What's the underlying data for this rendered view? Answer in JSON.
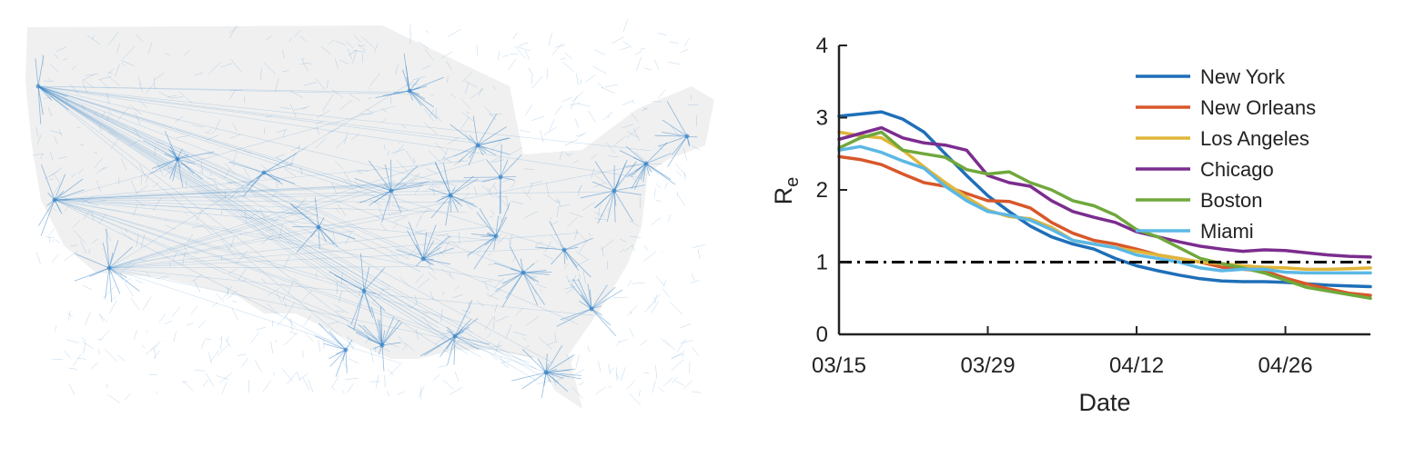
{
  "map": {
    "network_color": "#3a86c8",
    "land_color": "#f0f0f0"
  },
  "chart_data": {
    "type": "line",
    "title": "",
    "xlabel": "Date",
    "ylabel_main": "R",
    "ylabel_sub": "e",
    "x_ticks": [
      "03/15",
      "03/29",
      "04/12",
      "04/26"
    ],
    "x_tick_days": [
      0,
      14,
      28,
      42
    ],
    "xlim_days": [
      0,
      50
    ],
    "ylim": [
      0,
      4
    ],
    "y_ticks": [
      0,
      1,
      2,
      3,
      4
    ],
    "threshold": {
      "value": 1,
      "style": "dash-dot",
      "color": "#000000"
    },
    "legend_position": "top-right",
    "grid": false,
    "series": [
      {
        "name": "New York",
        "color": "#1f6fb8",
        "x": [
          0,
          2,
          4,
          6,
          8,
          10,
          12,
          14,
          16,
          18,
          20,
          22,
          24,
          26,
          28,
          30,
          32,
          34,
          36,
          38,
          40,
          42,
          44,
          46,
          48,
          50
        ],
        "y": [
          3.02,
          3.05,
          3.08,
          2.98,
          2.8,
          2.5,
          2.2,
          1.92,
          1.7,
          1.5,
          1.35,
          1.25,
          1.18,
          1.05,
          0.95,
          0.88,
          0.82,
          0.77,
          0.74,
          0.73,
          0.73,
          0.72,
          0.7,
          0.68,
          0.67,
          0.66
        ]
      },
      {
        "name": "New Orleans",
        "color": "#d8572a",
        "x": [
          0,
          2,
          4,
          6,
          8,
          10,
          12,
          14,
          16,
          18,
          20,
          22,
          24,
          26,
          28,
          30,
          32,
          34,
          36,
          38,
          40,
          42,
          44,
          46,
          48,
          50
        ],
        "y": [
          2.46,
          2.42,
          2.35,
          2.22,
          2.1,
          2.05,
          1.95,
          1.85,
          1.84,
          1.75,
          1.55,
          1.4,
          1.3,
          1.25,
          1.18,
          1.1,
          1.05,
          1.0,
          0.93,
          0.9,
          0.88,
          0.78,
          0.7,
          0.63,
          0.57,
          0.54
        ]
      },
      {
        "name": "Los Angeles",
        "color": "#e0b63a",
        "x": [
          0,
          2,
          4,
          6,
          8,
          10,
          12,
          14,
          16,
          18,
          20,
          22,
          24,
          26,
          28,
          30,
          32,
          34,
          36,
          38,
          40,
          42,
          44,
          46,
          48,
          50
        ],
        "y": [
          2.8,
          2.75,
          2.72,
          2.55,
          2.32,
          2.1,
          1.9,
          1.72,
          1.63,
          1.6,
          1.48,
          1.3,
          1.25,
          1.2,
          1.15,
          1.1,
          1.05,
          1.0,
          0.98,
          0.95,
          0.93,
          0.92,
          0.9,
          0.9,
          0.91,
          0.92
        ]
      },
      {
        "name": "Chicago",
        "color": "#7b2d8e",
        "x": [
          0,
          2,
          4,
          6,
          8,
          10,
          12,
          14,
          16,
          18,
          20,
          22,
          24,
          26,
          28,
          30,
          32,
          34,
          36,
          38,
          40,
          42,
          44,
          46,
          48,
          50
        ],
        "y": [
          2.7,
          2.78,
          2.86,
          2.72,
          2.65,
          2.62,
          2.55,
          2.2,
          2.1,
          2.05,
          1.85,
          1.7,
          1.62,
          1.55,
          1.42,
          1.35,
          1.28,
          1.22,
          1.18,
          1.15,
          1.17,
          1.16,
          1.13,
          1.1,
          1.08,
          1.07
        ]
      },
      {
        "name": "Boston",
        "color": "#70a83c",
        "x": [
          0,
          2,
          4,
          6,
          8,
          10,
          12,
          14,
          16,
          18,
          20,
          22,
          24,
          26,
          28,
          30,
          32,
          34,
          36,
          38,
          40,
          42,
          44,
          46,
          48,
          50
        ],
        "y": [
          2.58,
          2.72,
          2.8,
          2.55,
          2.5,
          2.45,
          2.28,
          2.22,
          2.25,
          2.1,
          2.0,
          1.85,
          1.78,
          1.65,
          1.45,
          1.35,
          1.2,
          1.05,
          0.98,
          0.92,
          0.85,
          0.75,
          0.65,
          0.6,
          0.55,
          0.5
        ]
      },
      {
        "name": "Miami",
        "color": "#5cb8e5",
        "x": [
          0,
          2,
          4,
          6,
          8,
          10,
          12,
          14,
          16,
          18,
          20,
          22,
          24,
          26,
          28,
          30,
          32,
          34,
          36,
          38,
          40,
          42,
          44,
          46,
          48,
          50
        ],
        "y": [
          2.55,
          2.6,
          2.52,
          2.4,
          2.3,
          2.05,
          1.85,
          1.7,
          1.65,
          1.58,
          1.45,
          1.3,
          1.25,
          1.2,
          1.1,
          1.05,
          1.0,
          0.92,
          0.88,
          0.9,
          0.9,
          0.86,
          0.85,
          0.85,
          0.85,
          0.85
        ]
      }
    ]
  }
}
